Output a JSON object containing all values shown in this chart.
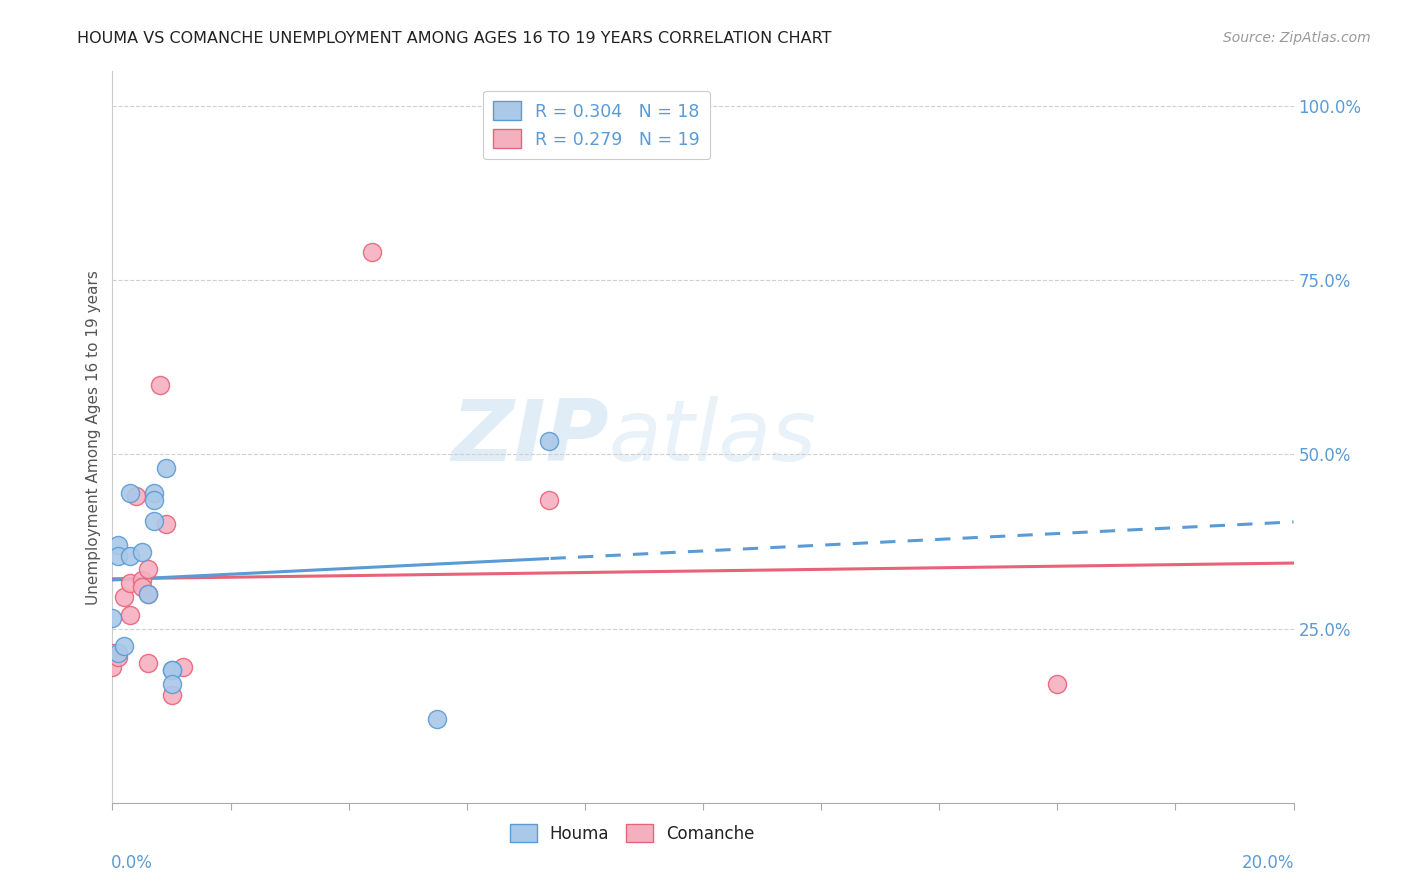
{
  "title": "HOUMA VS COMANCHE UNEMPLOYMENT AMONG AGES 16 TO 19 YEARS CORRELATION CHART",
  "source": "Source: ZipAtlas.com",
  "ylabel": "Unemployment Among Ages 16 to 19 years",
  "ylabel_right_vals": [
    1.0,
    0.75,
    0.5,
    0.25
  ],
  "ylabel_right_labels": [
    "100.0%",
    "75.0%",
    "50.0%",
    "25.0%"
  ],
  "houma_color": "#aac8e8",
  "comanche_color": "#f5b0c0",
  "houma_edge_color": "#5b9bd5",
  "comanche_edge_color": "#e8637a",
  "houma_line_color": "#5b9bd5",
  "comanche_line_color": "#e8637a",
  "legend_R_color": "#5b9bd5",
  "legend_houma_label": "R = 0.304   N = 18",
  "legend_comanche_label": "R = 0.279   N = 19",
  "houma_scatter_x": [
    0.0,
    0.001,
    0.001,
    0.001,
    0.002,
    0.003,
    0.003,
    0.005,
    0.006,
    0.007,
    0.007,
    0.007,
    0.009,
    0.01,
    0.01,
    0.01,
    0.055,
    0.074
  ],
  "houma_scatter_y": [
    0.265,
    0.37,
    0.355,
    0.215,
    0.225,
    0.355,
    0.445,
    0.36,
    0.3,
    0.445,
    0.435,
    0.405,
    0.48,
    0.19,
    0.19,
    0.17,
    0.12,
    0.52
  ],
  "comanche_scatter_x": [
    0.0,
    0.0,
    0.001,
    0.002,
    0.003,
    0.003,
    0.004,
    0.005,
    0.005,
    0.006,
    0.006,
    0.006,
    0.008,
    0.009,
    0.01,
    0.012,
    0.044,
    0.074,
    0.16
  ],
  "comanche_scatter_y": [
    0.215,
    0.195,
    0.21,
    0.295,
    0.315,
    0.27,
    0.44,
    0.32,
    0.31,
    0.335,
    0.3,
    0.2,
    0.6,
    0.4,
    0.155,
    0.195,
    0.79,
    0.435,
    0.17
  ],
  "x_min": 0.0,
  "x_max": 0.2,
  "y_min": 0.0,
  "y_max": 1.05,
  "watermark_zip": "ZIP",
  "watermark_atlas": "atlas"
}
